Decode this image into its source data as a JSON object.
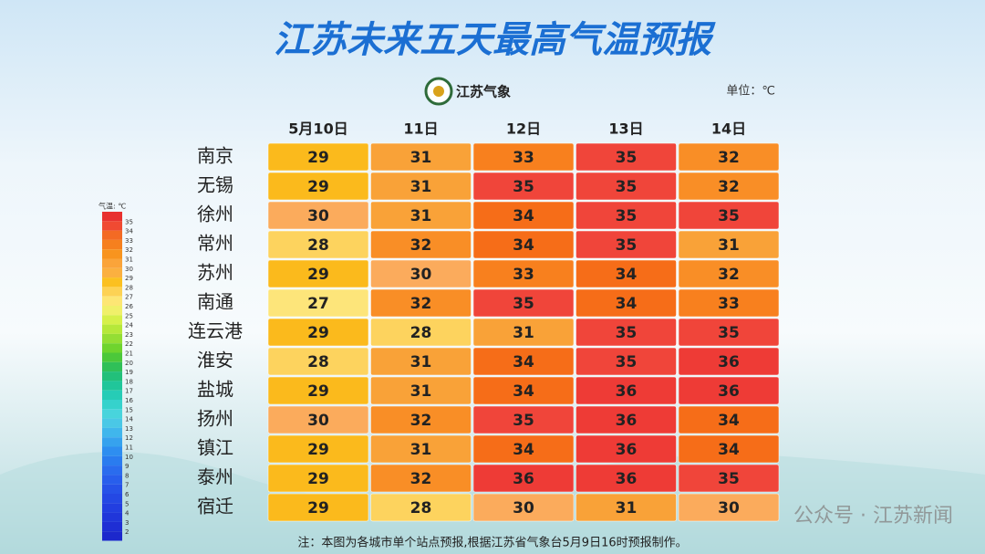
{
  "header": {
    "title": "江苏未来五天最高气温预报",
    "logo": "江苏气象",
    "unit": "单位：℃"
  },
  "table": {
    "columns": [
      "5月10日",
      "11日",
      "12日",
      "13日",
      "14日"
    ],
    "rows": [
      {
        "city": "南京",
        "values": [
          29,
          31,
          33,
          35,
          32
        ]
      },
      {
        "city": "无锡",
        "values": [
          29,
          31,
          35,
          35,
          32
        ]
      },
      {
        "city": "徐州",
        "values": [
          30,
          31,
          34,
          35,
          35
        ]
      },
      {
        "city": "常州",
        "values": [
          28,
          32,
          34,
          35,
          31
        ]
      },
      {
        "city": "苏州",
        "values": [
          29,
          30,
          33,
          34,
          32
        ]
      },
      {
        "city": "南通",
        "values": [
          27,
          32,
          35,
          34,
          33
        ]
      },
      {
        "city": "连云港",
        "values": [
          29,
          28,
          31,
          35,
          35
        ]
      },
      {
        "city": "淮安",
        "values": [
          28,
          31,
          34,
          35,
          36
        ]
      },
      {
        "city": "盐城",
        "values": [
          29,
          31,
          34,
          36,
          36
        ]
      },
      {
        "city": "扬州",
        "values": [
          30,
          32,
          35,
          36,
          34
        ]
      },
      {
        "city": "镇江",
        "values": [
          29,
          31,
          34,
          36,
          34
        ]
      },
      {
        "city": "泰州",
        "values": [
          29,
          32,
          36,
          36,
          35
        ]
      },
      {
        "city": "宿迁",
        "values": [
          29,
          28,
          30,
          31,
          30
        ]
      }
    ],
    "cell_colors": {
      "27": "#fde57a",
      "28": "#fdd35e",
      "29": "#fbba1c",
      "30": "#fbab5c",
      "31": "#f9a238",
      "32": "#f98e26",
      "33": "#f8801e",
      "34": "#f66d18",
      "35": "#f0453a",
      "36": "#ee3b36"
    }
  },
  "legend": {
    "title": "气温: ℃",
    "top_color": "#e8312f",
    "scale": [
      {
        "value": 35,
        "color": "#f04a32"
      },
      {
        "value": 34,
        "color": "#f36a24"
      },
      {
        "value": 33,
        "color": "#f6801e"
      },
      {
        "value": 32,
        "color": "#f8941e"
      },
      {
        "value": 31,
        "color": "#faa43a"
      },
      {
        "value": 30,
        "color": "#fbb040"
      },
      {
        "value": 29,
        "color": "#fbc020"
      },
      {
        "value": 28,
        "color": "#fdd254"
      },
      {
        "value": 27,
        "color": "#fde674"
      },
      {
        "value": 26,
        "color": "#f0f06a"
      },
      {
        "value": 25,
        "color": "#d6f04a"
      },
      {
        "value": 24,
        "color": "#b6e83a"
      },
      {
        "value": 23,
        "color": "#94de34"
      },
      {
        "value": 22,
        "color": "#6fd42e"
      },
      {
        "value": 21,
        "color": "#4cc83a"
      },
      {
        "value": 20,
        "color": "#30c058"
      },
      {
        "value": 19,
        "color": "#22c07a"
      },
      {
        "value": 18,
        "color": "#20c69a"
      },
      {
        "value": 17,
        "color": "#26ccb6"
      },
      {
        "value": 16,
        "color": "#36d2cc"
      },
      {
        "value": 15,
        "color": "#48d4dc"
      },
      {
        "value": 14,
        "color": "#4ac8e6"
      },
      {
        "value": 13,
        "color": "#40b6ec"
      },
      {
        "value": 12,
        "color": "#36a2ee"
      },
      {
        "value": 11,
        "color": "#2e8ef0"
      },
      {
        "value": 10,
        "color": "#2a7cef"
      },
      {
        "value": 9,
        "color": "#2a6cee"
      },
      {
        "value": 8,
        "color": "#285eec"
      },
      {
        "value": 7,
        "color": "#2652e8"
      },
      {
        "value": 6,
        "color": "#2448e4"
      },
      {
        "value": 5,
        "color": "#223ee0"
      },
      {
        "value": 4,
        "color": "#2036da"
      },
      {
        "value": 3,
        "color": "#1e2ed4"
      },
      {
        "value": 2,
        "color": "#1c28cc"
      }
    ]
  },
  "footer": {
    "note": "注：本图为各城市单个站点预报,根据江苏省气象台5月9日16时预报制作。",
    "watermark": "公众号 · 江苏新闻"
  }
}
